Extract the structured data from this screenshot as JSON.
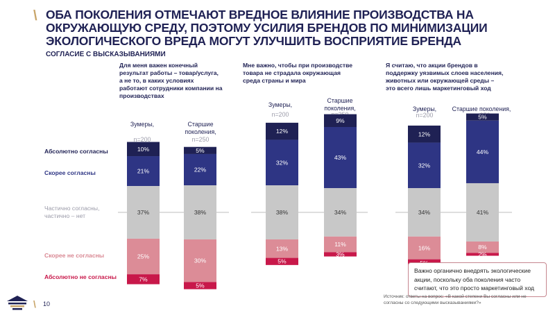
{
  "title": "ОБА ПОКОЛЕНИЯ ОТМЕЧАЮТ ВРЕДНОЕ ВЛИЯНИЕ ПРОИЗВОДСТВА НА ОКРУЖАЮЩУЮ СРЕДУ, ПОЭТОМУ УСИЛИЯ БРЕНДОВ ПО МИНИМИЗАЦИИ ЭКОЛОГИЧЕСКОГО ВРЕДА МОГУТ УЛУЧШИТЬ ВОСПРИЯТИЕ БРЕНДА",
  "subtitle": "СОГЛАСИЕ С ВЫСКАЗЫВАНИЯМИ",
  "legend": [
    {
      "label": "Абсолютно согласны",
      "color": "#1f2154"
    },
    {
      "label": "Скорее согласны",
      "color": "#2e3584"
    },
    {
      "label": "Частично согласны, частично – нет",
      "color": "#9a9aa8"
    },
    {
      "label": "Скорее не согласны",
      "color": "#d98893"
    },
    {
      "label": "Абсолютно не согласны",
      "color": "#c8184a"
    }
  ],
  "colors": {
    "abs_agree": "#1f2154",
    "agree": "#2e3584",
    "partial": "#c8c8c8",
    "disagree": "#dc8c97",
    "abs_disagree": "#c8184a",
    "accent": "#c9a66b"
  },
  "groups": {
    "zoomers": {
      "name": "Зумеры,",
      "n": "n=200"
    },
    "older": {
      "name": "Старшие поколения,",
      "n": "n=250"
    }
  },
  "chart_data": [
    {
      "type": "bar",
      "stacked": true,
      "diverging": true,
      "question": "Для меня важен конечный результат работы – товар/услуга, а не то, в каких условиях работают сотрудники компании на производствах",
      "categories": [
        "Зумеры, n=200",
        "Старшие поколения, n=250"
      ],
      "series": [
        {
          "name": "Абсолютно согласны",
          "values": [
            10,
            5
          ]
        },
        {
          "name": "Скорее согласны",
          "values": [
            21,
            22
          ]
        },
        {
          "name": "Частично согласны, частично – нет",
          "values": [
            37,
            38
          ]
        },
        {
          "name": "Скорее не согласны",
          "values": [
            25,
            30
          ]
        },
        {
          "name": "Абсолютно не согласны",
          "values": [
            7,
            5
          ]
        }
      ]
    },
    {
      "type": "bar",
      "stacked": true,
      "diverging": true,
      "question": "Мне важно, чтобы при производстве товара не страдала окружающая среда страны и мира",
      "categories": [
        "Зумеры, n=200",
        "Старшие поколения, n=250"
      ],
      "series": [
        {
          "name": "Абсолютно согласны",
          "values": [
            12,
            9
          ]
        },
        {
          "name": "Скорее согласны",
          "values": [
            32,
            43
          ]
        },
        {
          "name": "Частично согласны, частично – нет",
          "values": [
            38,
            34
          ]
        },
        {
          "name": "Скорее не согласны",
          "values": [
            13,
            11
          ]
        },
        {
          "name": "Абсолютно не согласны",
          "values": [
            5,
            3
          ]
        }
      ]
    },
    {
      "type": "bar",
      "stacked": true,
      "diverging": true,
      "question": "Я считаю, что акции брендов в поддержку уязвимых слоев населения, животных или окружающей среды – это всего лишь маркетинговый ход",
      "categories": [
        "Зумеры, n=200",
        "Старшие поколения, n=250"
      ],
      "series": [
        {
          "name": "Абсолютно согласны",
          "values": [
            12,
            5
          ]
        },
        {
          "name": "Скорее согласны",
          "values": [
            32,
            44
          ]
        },
        {
          "name": "Частично согласны, частично – нет",
          "values": [
            34,
            41
          ]
        },
        {
          "name": "Скорее не согласны",
          "values": [
            16,
            8
          ]
        },
        {
          "name": "Абсолютно не согласны",
          "values": [
            5,
            2
          ]
        }
      ]
    }
  ],
  "callout": "Важно органично внедрять экологические акции, поскольку оба поколения часто считают, что это просто маркетинговый ход",
  "source": "Источник: ответы на вопрос: «В какой степени Вы согласны или не согласны со следующими высказываниями?»",
  "page_number": "10"
}
